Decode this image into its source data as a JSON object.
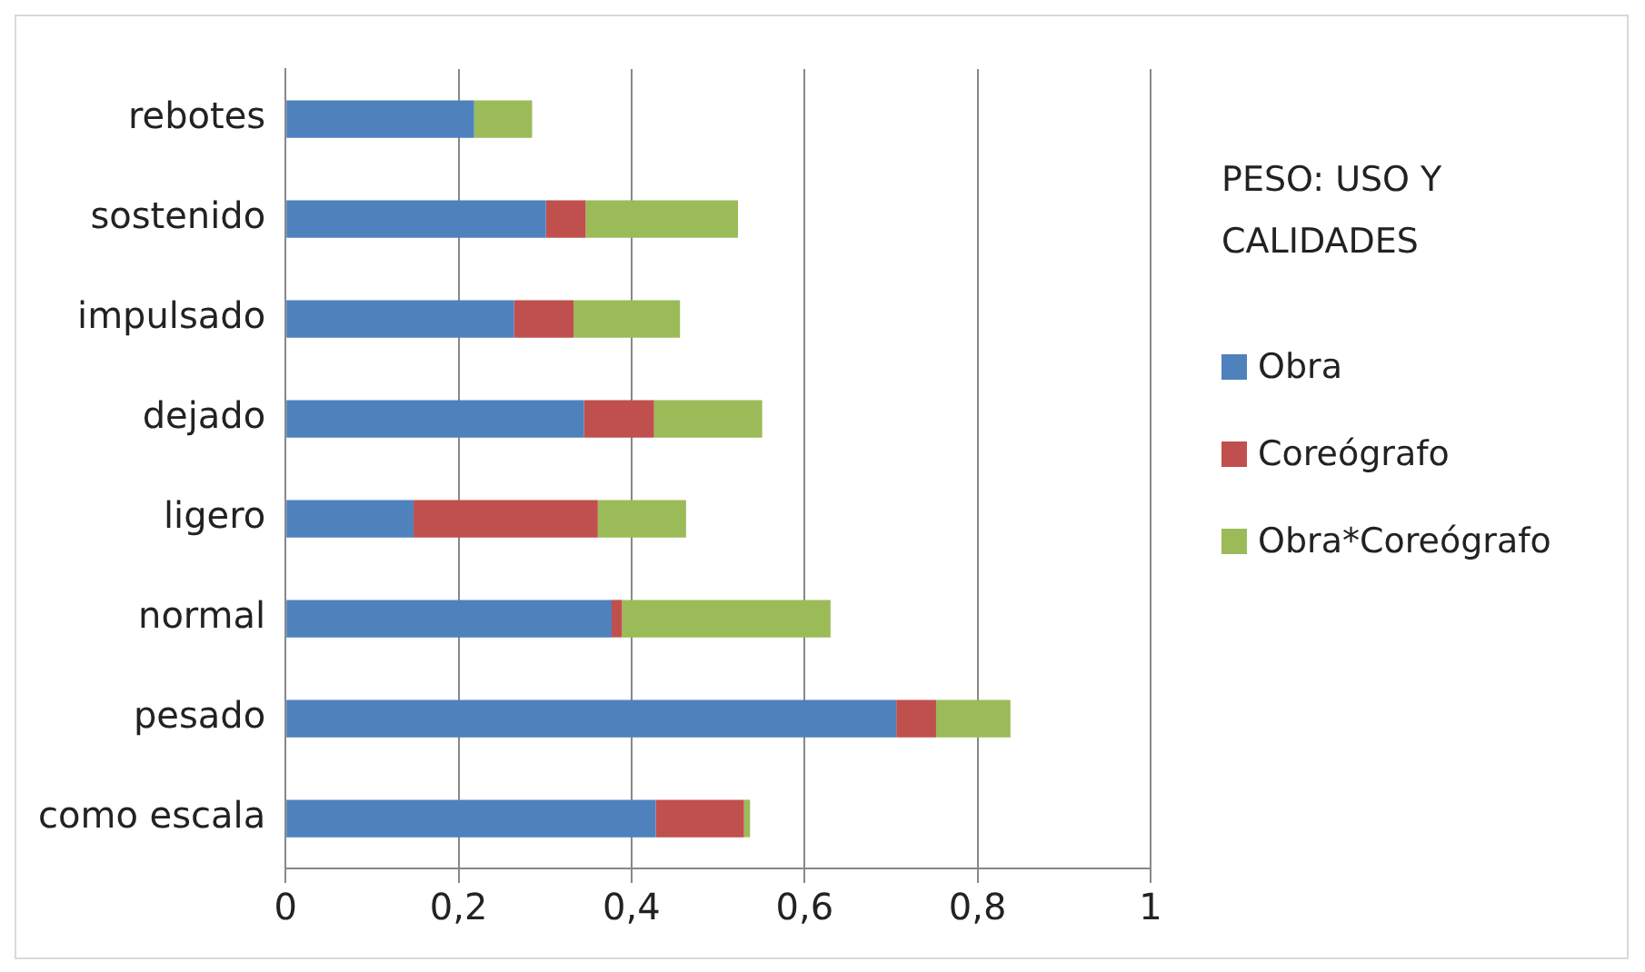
{
  "chart_data": {
    "type": "bar",
    "orientation": "horizontal",
    "stacked": true,
    "legend_title": "PESO: USO Y CALIDADES",
    "legend": "right",
    "grid": "x",
    "categories": [
      "rebotes",
      "sostenido",
      "impulsado",
      "dejado",
      "ligero",
      "normal",
      "pesado",
      "como escala"
    ],
    "series": [
      {
        "name": "Obra",
        "color": "#4f81bd",
        "values": [
          0.218,
          0.301,
          0.264,
          0.345,
          0.148,
          0.377,
          0.706,
          0.428
        ]
      },
      {
        "name": "Coreógrafo",
        "color": "#c0504d",
        "values": [
          0,
          0.046,
          0.069,
          0.081,
          0.213,
          0.012,
          0.046,
          0.102
        ]
      },
      {
        "name": "Obra*Coreógrafo",
        "color": "#9bbb59",
        "values": [
          0.067,
          0.176,
          0.123,
          0.125,
          0.102,
          0.241,
          0.086,
          0.007
        ]
      }
    ],
    "xlim": [
      0,
      1
    ],
    "xticks": [
      0,
      {
        "value": 0.2,
        "label": "0,2"
      },
      {
        "value": 0.4,
        "label": "0,4"
      },
      {
        "value": 0.6,
        "label": "0,6"
      },
      {
        "value": 0.8,
        "label": "0,8"
      },
      1
    ]
  }
}
